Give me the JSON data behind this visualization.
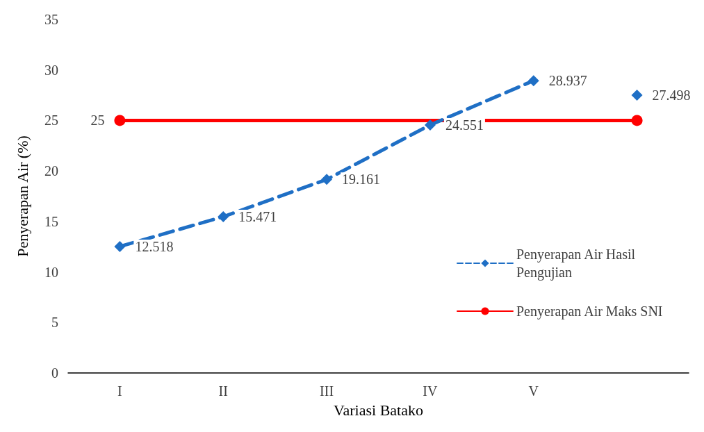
{
  "chart_data": {
    "type": "line",
    "xlabel": "Variasi Batako",
    "ylabel": "Penyerapan Air (%)",
    "categories": [
      "I",
      "II",
      "III",
      "IV",
      "V",
      null
    ],
    "ylim": [
      0,
      35
    ],
    "yticks": [
      0,
      5,
      10,
      15,
      20,
      25,
      30,
      35
    ],
    "grid": false,
    "legend": "right",
    "series": [
      {
        "name": "Penyerapan Air Hasil Pengujian",
        "color": "#1f6fc5",
        "marker": "diamond",
        "line_style": "dashed",
        "values": [
          12.518,
          15.471,
          19.161,
          24.551,
          28.937,
          null
        ],
        "value_labels": [
          "12.518",
          "15.471",
          "19.161",
          "24.551",
          "28.937",
          null
        ]
      },
      {
        "color": "#1f6fc5",
        "type": "scatter",
        "marker": "diamond",
        "values": [
          null,
          null,
          null,
          null,
          null,
          27.498
        ],
        "value_labels": [
          null,
          null,
          null,
          null,
          null,
          "27.498"
        ]
      },
      {
        "name": "Penyerapan Air Maks SNI",
        "color": "#ff0000",
        "marker": "circle",
        "line_style": "solid",
        "values": [
          25,
          null,
          null,
          null,
          null,
          25
        ],
        "value_labels": [
          "25",
          null,
          null,
          null,
          null,
          null
        ]
      }
    ]
  }
}
